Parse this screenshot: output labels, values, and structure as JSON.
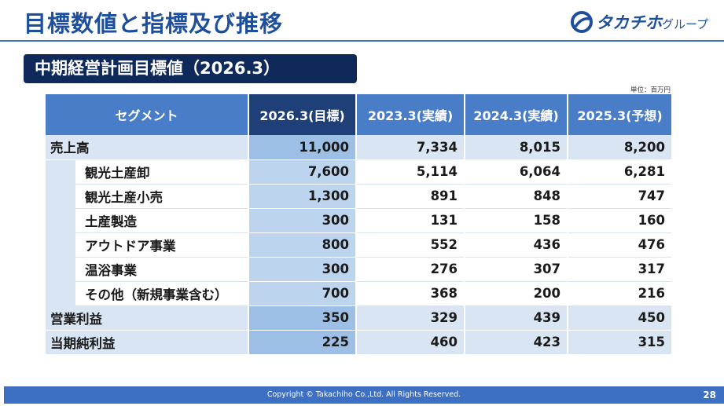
{
  "header": {
    "title": "目標数値と指標及び推移",
    "logo_text": "タカチホ",
    "logo_sub": "グループ",
    "logo_color": "#1e4f9c"
  },
  "section": {
    "title": "中期経営計画目標値（2026.3）"
  },
  "unit_note": "単位：百万円",
  "table": {
    "headers": [
      "セグメント",
      "2026.3(目標)",
      "2023.3(実績)",
      "2024.3(実績)",
      "2025.3(予想)"
    ],
    "rows": [
      {
        "label": "売上高",
        "type": "main",
        "values": [
          "11,000",
          "7,334",
          "8,015",
          "8,200"
        ]
      },
      {
        "label": "観光土産卸",
        "type": "sub",
        "values": [
          "7,600",
          "5,114",
          "6,064",
          "6,281"
        ]
      },
      {
        "label": "観光土産小売",
        "type": "sub",
        "values": [
          "1,300",
          "891",
          "848",
          "747"
        ]
      },
      {
        "label": "土産製造",
        "type": "sub",
        "values": [
          "300",
          "131",
          "158",
          "160"
        ]
      },
      {
        "label": "アウトドア事業",
        "type": "sub",
        "values": [
          "800",
          "552",
          "436",
          "476"
        ]
      },
      {
        "label": "温浴事業",
        "type": "sub",
        "values": [
          "300",
          "276",
          "307",
          "317"
        ]
      },
      {
        "label": "その他（新規事業含む）",
        "type": "sub",
        "values": [
          "700",
          "368",
          "200",
          "216"
        ]
      },
      {
        "label": "営業利益",
        "type": "main",
        "values": [
          "350",
          "329",
          "439",
          "450"
        ]
      },
      {
        "label": "当期純利益",
        "type": "main",
        "values": [
          "225",
          "460",
          "423",
          "315"
        ]
      }
    ]
  },
  "footer": {
    "copyright": "Copyright © Takachiho Co.,Ltd. All Rights Reserved.",
    "page_number": "28"
  }
}
